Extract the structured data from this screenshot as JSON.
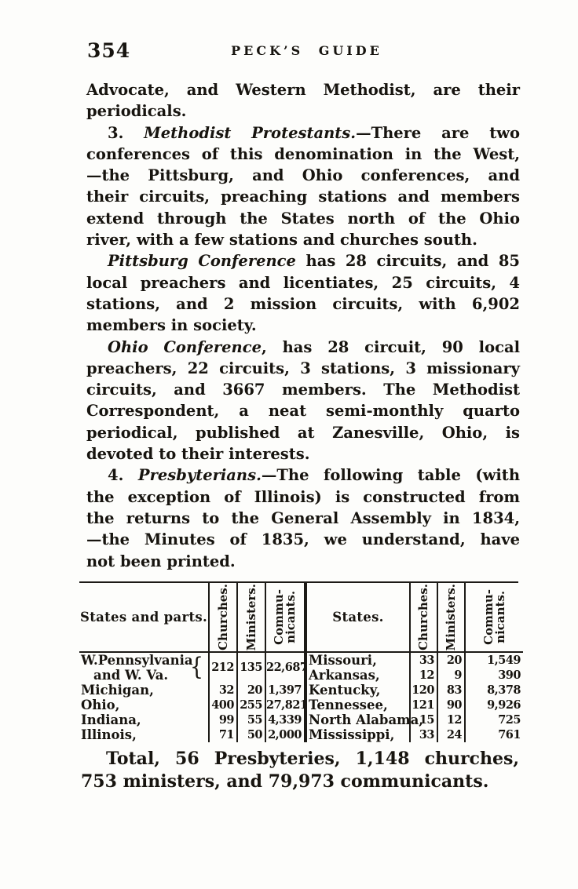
{
  "page": {
    "number": "354",
    "running_title": "PECK’S GUIDE"
  },
  "paragraphs": [
    {
      "indent": false,
      "lines": [
        "Advocate, and Western Methodist, are their",
        "periodicals."
      ]
    },
    {
      "indent": true,
      "lines": [
        "3. *Methodist Protestants.*—There are two",
        "conferences of this denomination in the West,",
        "—the Pittsburg, and Ohio conferences, and",
        "their circuits, preaching stations and members",
        "extend through the States north of the Ohio",
        "river, with a few stations and churches south."
      ]
    },
    {
      "indent": true,
      "lines": [
        "*Pittsburg Conference* has 28 circuits, and 85",
        "local preachers and licentiates, 25 circuits, 4",
        "stations, and 2 mission circuits, with 6,902",
        "members in society."
      ]
    },
    {
      "indent": true,
      "lines": [
        "*Ohio Conference*, has 28 circuit, 90 local",
        "preachers, 22 circuits, 3 stations, 3 missionary",
        "circuits, and 3667 members.  The Methodist",
        "Correspondent, a neat semi-monthly quarto",
        "periodical, published at Zanesville, Ohio, is",
        "devoted to their interests."
      ]
    },
    {
      "indent": true,
      "lines": [
        "4. *Presbyterians.*—The following table (with",
        "the exception of Illinois) is constructed from",
        "the returns to the General Assembly in 1834,",
        "—the Minutes of 1835, we understand, have",
        "not been printed."
      ]
    }
  ],
  "table": {
    "left": {
      "label_header": "States and parts.",
      "col_headers": [
        "Churches.",
        "Ministers.",
        "Commu-\nnicants."
      ],
      "rows": [
        {
          "label": "W.Pennsylvania",
          "label2": "and W. Va.",
          "brace": "{",
          "values": [
            "212",
            "135",
            "22,687"
          ]
        },
        {
          "label": "Michigan,",
          "values": [
            "32",
            "20",
            "1,397"
          ]
        },
        {
          "label": "Ohio,",
          "values": [
            "400",
            "255",
            "27,821"
          ]
        },
        {
          "label": "Indiana,",
          "values": [
            "99",
            "55",
            "4,339"
          ]
        },
        {
          "label": "Illinois,",
          "values": [
            "71",
            "50",
            "2,000"
          ]
        }
      ]
    },
    "right": {
      "label_header": "States.",
      "col_headers": [
        "Churches.",
        "Ministers.",
        "Commu-\nnicants."
      ],
      "rows": [
        {
          "label": "Missouri,",
          "values": [
            "33",
            "20",
            "1,549"
          ]
        },
        {
          "label": "Arkansas,",
          "values": [
            "12",
            "9",
            "390"
          ]
        },
        {
          "label": "Kentucky,",
          "values": [
            "120",
            "83",
            "8,378"
          ]
        },
        {
          "label": "Tennessee,",
          "values": [
            "121",
            "90",
            "9,926"
          ]
        },
        {
          "label": "North Alabama,",
          "values": [
            "15",
            "12",
            "725"
          ]
        },
        {
          "label": "Mississippi,",
          "values": [
            "33",
            "24",
            "761"
          ]
        }
      ]
    }
  },
  "total_paragraph": {
    "lines": [
      "Total, 56 Presbyteries, 1,148 churches,",
      "753 ministers, and 79,973 communicants."
    ]
  }
}
